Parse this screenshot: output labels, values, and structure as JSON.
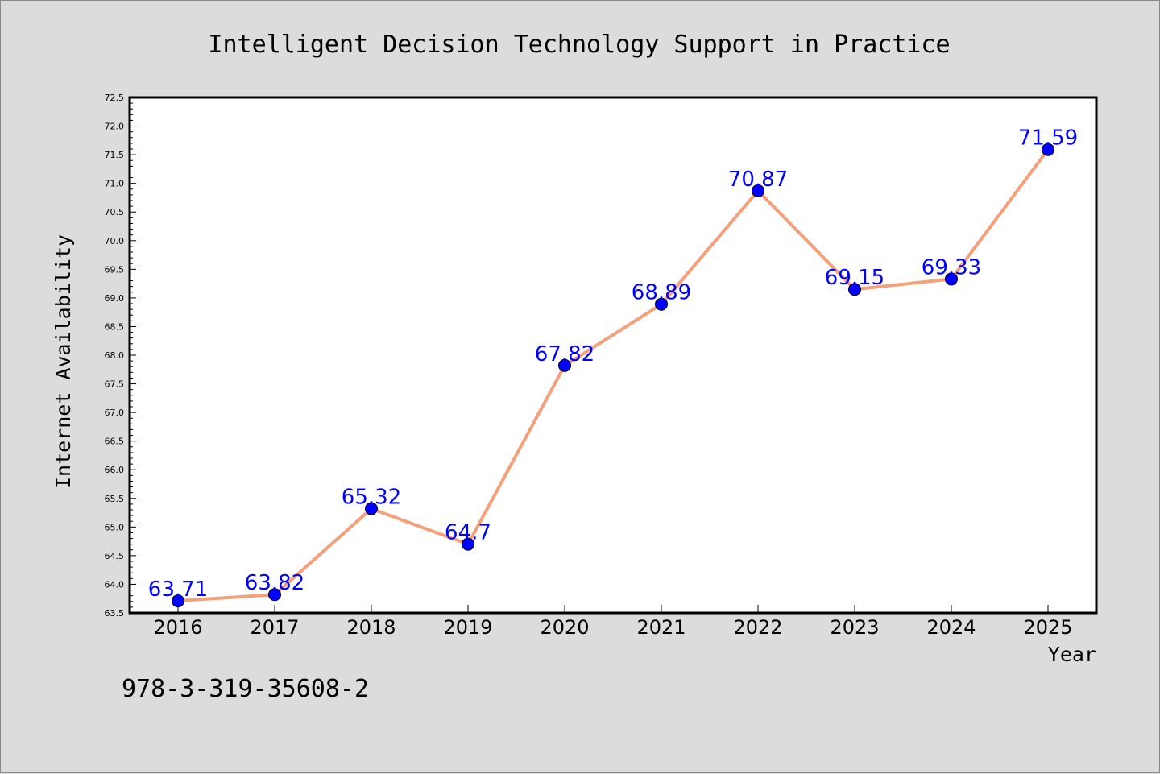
{
  "chart_data": {
    "type": "line",
    "title": "Intelligent Decision Technology Support in Practice",
    "xlabel": "Year",
    "ylabel": "Internet Availability",
    "categories": [
      "2016",
      "2017",
      "2018",
      "2019",
      "2020",
      "2021",
      "2022",
      "2023",
      "2024",
      "2025"
    ],
    "values": [
      63.71,
      63.82,
      65.32,
      64.7,
      67.82,
      68.89,
      70.87,
      69.15,
      69.33,
      71.59
    ],
    "data_labels": [
      "63.71",
      "63.82",
      "65.32",
      "64.7",
      "67.82",
      "68.89",
      "70.87",
      "69.15",
      "69.33",
      "71.59"
    ],
    "ylim": [
      63.5,
      72.5
    ],
    "yticks": [
      "63.5",
      "64.0",
      "64.5",
      "65.0",
      "65.5",
      "66.0",
      "66.5",
      "67.0",
      "67.5",
      "68.0",
      "68.5",
      "69.0",
      "69.5",
      "70.0",
      "70.5",
      "71.0",
      "71.5",
      "72.0",
      "72.5"
    ],
    "grid": false,
    "line_color": "#f4a07a",
    "marker_color": "#0000ff",
    "label_color": "#0000ff"
  },
  "footer": {
    "isbn": "978-3-319-35608-2"
  }
}
